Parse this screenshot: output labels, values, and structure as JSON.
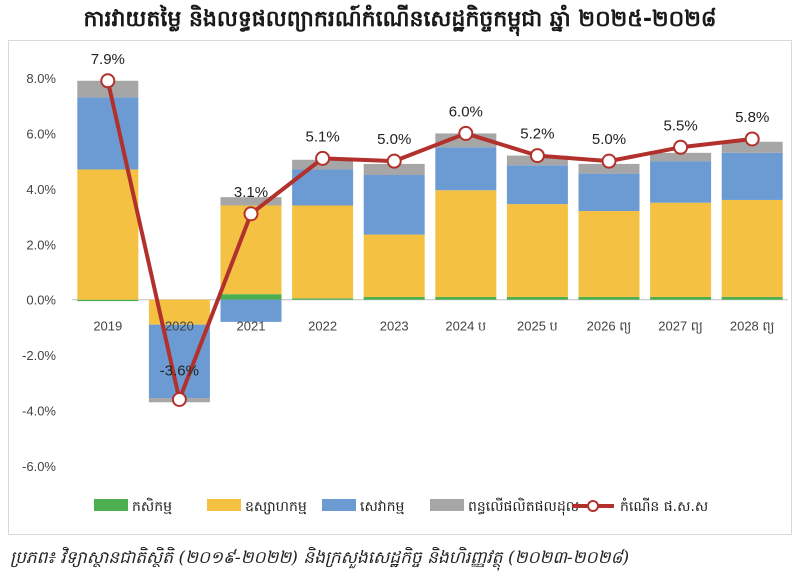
{
  "title": "ការវាយតម្លៃ និងលទ្ធផលព្យាករណ៍កំណើនសេដ្ឋកិច្ចកម្ពុជា ឆ្នាំ ២០២៥-២០២៨",
  "source": "ប្រភព៖ វិទ្យាស្ថានជាតិស្ថិតិ (២០១៩-២០២២) និងក្រសួងសេដ្ឋកិច្ច និងហិរញ្ញវត្ថុ (២០២៣-២០២៨)",
  "chart_data": {
    "type": "bar",
    "stacked": true,
    "categories": [
      "2019",
      "2020",
      "2021",
      "2022",
      "2023",
      "2024 ប",
      "2025 ប",
      "2026 ព្យ",
      "2027 ព្យ",
      "2028 ព្យ"
    ],
    "ylim": [
      -6,
      8
    ],
    "yticks": [
      -6,
      -4,
      -2,
      0,
      2,
      4,
      6,
      8
    ],
    "ytick_labels": [
      "-6.0%",
      "-4.0%",
      "-2.0%",
      "0.0%",
      "2.0%",
      "4.0%",
      "6.0%",
      "8.0%"
    ],
    "grid": false,
    "legend_position": "bottom",
    "series": [
      {
        "name": "កសិកម្ម",
        "color": "#4caf50",
        "values": [
          -0.05,
          0.0,
          0.2,
          0.05,
          0.1,
          0.1,
          0.1,
          0.1,
          0.1,
          0.1
        ]
      },
      {
        "name": "ឧស្សាហកម្ម",
        "color": "#f4c142",
        "values": [
          4.7,
          -0.9,
          3.2,
          3.35,
          2.25,
          3.85,
          3.35,
          3.1,
          3.4,
          3.5
        ]
      },
      {
        "name": "សេវាកម្ម",
        "color": "#6b9bd2",
        "values": [
          2.6,
          -2.65,
          -0.8,
          1.3,
          2.15,
          1.55,
          1.4,
          1.35,
          1.5,
          1.7
        ]
      },
      {
        "name": "ពន្ធលើផលិតផលដុល",
        "color": "#a6a6a6",
        "values": [
          0.6,
          -0.15,
          0.3,
          0.35,
          0.4,
          0.5,
          0.35,
          0.35,
          0.3,
          0.4
        ]
      }
    ],
    "line": {
      "name": "កំណើន ផ.ស.ស",
      "color": "#b3312c",
      "values": [
        7.9,
        -3.6,
        3.1,
        5.1,
        5.0,
        6.0,
        5.2,
        5.0,
        5.5,
        5.8
      ],
      "labels": [
        "7.9%",
        "-3.6%",
        "3.1%",
        "5.1%",
        "5.0%",
        "6.0%",
        "5.2%",
        "5.0%",
        "5.5%",
        "5.8%"
      ]
    }
  }
}
